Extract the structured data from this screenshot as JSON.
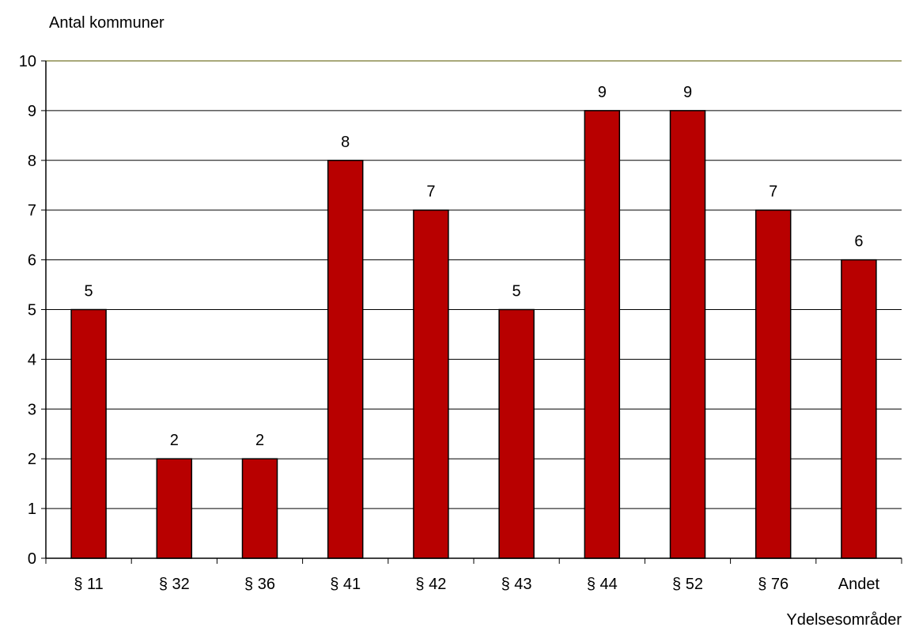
{
  "chart_data": {
    "type": "bar",
    "title": "",
    "ylabel": "Antal kommuner",
    "xlabel": "Ydelsesområder",
    "categories": [
      "§ 11",
      "§ 32",
      "§ 36",
      "§ 41",
      "§ 42",
      "§ 43",
      "§ 44",
      "§ 52",
      "§ 76",
      "Andet"
    ],
    "values": [
      5,
      2,
      2,
      8,
      7,
      5,
      9,
      9,
      7,
      6
    ],
    "ylim": [
      0,
      10
    ],
    "yticks": [
      "0",
      "1",
      "2",
      "3",
      "4",
      "5",
      "6",
      "7",
      "8",
      "9",
      "10"
    ],
    "data_labels": [
      "5",
      "2",
      "2",
      "8",
      "7",
      "5",
      "9",
      "9",
      "7",
      "6"
    ],
    "grid": true,
    "legend": "none",
    "colors": {
      "bar": "#b80000",
      "bar_edge": "#000000",
      "grid": "#000000",
      "top_line": "#a8a87a"
    }
  }
}
